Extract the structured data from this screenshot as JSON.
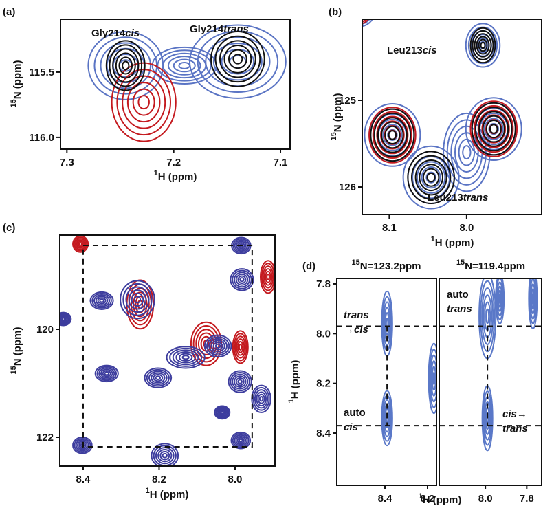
{
  "chart_data": [
    {
      "type": "contour",
      "label": "(a)",
      "x_label": {
        "sup": "1",
        "text": "H (ppm)"
      },
      "y_label": {
        "sup": "15",
        "text": "N (ppm)"
      },
      "xlim": [
        7.306,
        7.091
      ],
      "ylim": [
        116.09,
        115.095
      ],
      "xticks": [
        7.3,
        7.2,
        7.1
      ],
      "yticks": [
        115.5,
        {
          "value": 116,
          "label": "116.0"
        }
      ],
      "peaks": {
        "x": [
          7.245,
          7.14,
          7.19,
          7.228,
          7.245,
          7.14
        ],
        "y": [
          115.45,
          115.42,
          115.45,
          115.73,
          115.45,
          115.4
        ],
        "wx": [
          0.035,
          0.045,
          0.03,
          0.03,
          0.018,
          0.025
        ],
        "wy": [
          0.26,
          0.28,
          0.14,
          0.3,
          0.19,
          0.21
        ],
        "colors": [
          "#5a74c4",
          "#5a74c4",
          "#5a74c4",
          "#c4191e",
          "#111111",
          "#111111"
        ]
      },
      "annotations": [
        [
          [
            {
              "text": "Gly214"
            },
            {
              "text": "cis",
              "italic": true
            }
          ]
        ],
        [
          [
            {
              "text": "Gly214"
            },
            {
              "text": "trans",
              "italic": true
            }
          ]
        ]
      ]
    },
    {
      "type": "contour",
      "label": "(b)",
      "x_label": {
        "sup": "1",
        "text": "H (ppm)"
      },
      "y_label": {
        "sup": "15",
        "text": "N (ppm)"
      },
      "xlim": [
        8.135,
        7.903
      ],
      "ylim": [
        126.317,
        124.064
      ],
      "xticks": [
        8.1,
        {
          "value": 8,
          "label": "8.0"
        }
      ],
      "yticks": [
        125,
        126
      ],
      "peaks": {
        "x": [
          8.14,
          8.14,
          8.0,
          8.096,
          7.965,
          8.046,
          7.979,
          8.096,
          7.965,
          8.096,
          7.965,
          8.046,
          7.979
        ],
        "y": [
          124.0,
          124.0,
          125.6,
          125.4,
          125.33,
          125.89,
          124.365,
          125.4,
          125.33,
          125.4,
          125.33,
          125.89,
          124.365
        ],
        "wx": [
          0.02,
          0.015,
          0.03,
          0.036,
          0.036,
          0.036,
          0.022,
          0.03,
          0.03,
          0.028,
          0.028,
          0.03,
          0.016
        ],
        "wy": [
          0.15,
          0.12,
          0.45,
          0.36,
          0.36,
          0.36,
          0.25,
          0.32,
          0.32,
          0.3,
          0.3,
          0.3,
          0.2
        ],
        "colors": [
          "#5a74c4",
          "#c4191e",
          "#5a74c4",
          "#5a74c4",
          "#5a74c4",
          "#5a74c4",
          "#5a74c4",
          "#c4191e",
          "#c4191e",
          "#111111",
          "#111111",
          "#111111",
          "#111111"
        ]
      },
      "annotations": [
        [
          [
            {
              "text": "Leu213"
            },
            {
              "text": "cis",
              "italic": true
            }
          ]
        ],
        [
          [
            {
              "text": "Leu213"
            },
            {
              "text": "trans",
              "italic": true
            }
          ]
        ]
      ]
    },
    {
      "type": "contour",
      "label": "(c)",
      "x_label": {
        "sup": "1",
        "text": "H (ppm)"
      },
      "y_label": {
        "sup": "15",
        "text": "N (ppm)"
      },
      "xlim": [
        8.4615,
        7.895
      ],
      "ylim": [
        122.535,
        118.255
      ],
      "xticks": [
        8.4,
        8.2,
        {
          "value": 8,
          "label": "8.0"
        }
      ],
      "yticks": [
        120,
        122
      ],
      "guide_box": {
        "x": [
          8.4,
          7.955
        ],
        "y": [
          118.446,
          122.178
        ]
      },
      "peaks": {
        "x": [
          8.407,
          8.25,
          8.076,
          7.986,
          7.913,
          8.351,
          8.257,
          8.452,
          8.203,
          8.338,
          8.13,
          8.045,
          7.984,
          7.982,
          7.987,
          7.931,
          8.034,
          7.985,
          8.185,
          8.402
        ],
        "y": [
          118.42,
          119.54,
          120.27,
          120.33,
          119.03,
          119.47,
          119.45,
          119.81,
          120.9,
          120.82,
          120.52,
          120.31,
          118.45,
          119.08,
          120.97,
          121.29,
          121.54,
          122.06,
          122.34,
          122.15
        ],
        "wx": [
          0.02,
          0.035,
          0.04,
          0.02,
          0.02,
          0.03,
          0.045,
          0.02,
          0.035,
          0.03,
          0.05,
          0.035,
          0.025,
          0.03,
          0.03,
          0.025,
          0.02,
          0.025,
          0.035,
          0.025
        ],
        "wy": [
          0.15,
          0.45,
          0.4,
          0.3,
          0.3,
          0.16,
          0.35,
          0.12,
          0.18,
          0.15,
          0.2,
          0.2,
          0.15,
          0.2,
          0.2,
          0.25,
          0.12,
          0.15,
          0.22,
          0.15
        ],
        "colors": [
          "#c4191e",
          "#c4191e",
          "#c4191e",
          "#c4191e",
          "#c4191e",
          "#3d3d9e",
          "#3d3d9e",
          "#3d3d9e",
          "#3d3d9e",
          "#3d3d9e",
          "#3d3d9e",
          "#3d3d9e",
          "#3d3d9e",
          "#3d3d9e",
          "#3d3d9e",
          "#3d3d9e",
          "#3d3d9e",
          "#3d3d9e",
          "#3d3d9e",
          "#3d3d9e"
        ]
      }
    },
    {
      "type": "contour",
      "label": "(d)",
      "title": {
        "sup": "15",
        "text": "N=123.2ppm"
      },
      "x_label": {
        "sup": "1",
        "text": "H (ppm)"
      },
      "y_label": {
        "sup": "1",
        "text": "H (ppm)"
      },
      "xlim": [
        8.626,
        8.158
      ],
      "ylim": [
        8.61,
        7.778
      ],
      "xticks": [
        8.4,
        8.2
      ],
      "yticks": [
        7.8,
        {
          "value": 8,
          "label": "8.0"
        },
        8.2,
        8.4
      ],
      "guides": {
        "x": [
          8.39
        ],
        "y": [
          7.97,
          8.37
        ]
      },
      "peaks": {
        "x": [
          8.39,
          8.39,
          8.17
        ],
        "y": [
          7.96,
          8.34,
          8.18
        ],
        "wx": [
          0.025,
          0.025,
          0.025
        ],
        "wy": [
          0.13,
          0.11,
          0.14
        ],
        "colors": [
          "#5a78c8",
          "#5a78c8",
          "#5a78c8"
        ]
      },
      "annotations": [
        [
          [
            {
              "text": "trans",
              "italic": true
            }
          ],
          [
            {
              "text": "→"
            },
            {
              "text": "cis",
              "italic": true
            }
          ]
        ],
        [
          [
            {
              "text": "auto"
            }
          ],
          [
            {
              "text": "cis",
              "italic": true
            }
          ]
        ]
      ]
    },
    {
      "type": "contour",
      "title": {
        "sup": "15",
        "text": "N=119.4ppm"
      },
      "xlim": [
        8.223,
        7.728
      ],
      "ylim": [
        8.61,
        7.778
      ],
      "xticks": [
        {
          "value": 8,
          "label": "8.0"
        },
        7.8
      ],
      "guides": {
        "x": [
          7.99
        ],
        "y": [
          7.97,
          8.37
        ]
      },
      "peaks": {
        "x": [
          7.99,
          7.99,
          7.93,
          7.77
        ],
        "y": [
          7.93,
          8.34,
          7.86,
          7.86
        ],
        "wx": [
          0.04,
          0.025,
          0.02,
          0.02
        ],
        "wy": [
          0.17,
          0.13,
          0.1,
          0.12
        ],
        "colors": [
          "#5a78c8",
          "#5a78c8",
          "#5a78c8",
          "#5a78c8"
        ]
      },
      "annotations": [
        [
          [
            {
              "text": "auto"
            }
          ],
          [
            {
              "text": "trans",
              "italic": true
            }
          ]
        ],
        [
          [
            {
              "text": "cis",
              "italic": true
            },
            {
              "text": "→"
            }
          ],
          [
            {
              "text": "trans",
              "italic": true
            }
          ]
        ]
      ]
    }
  ]
}
